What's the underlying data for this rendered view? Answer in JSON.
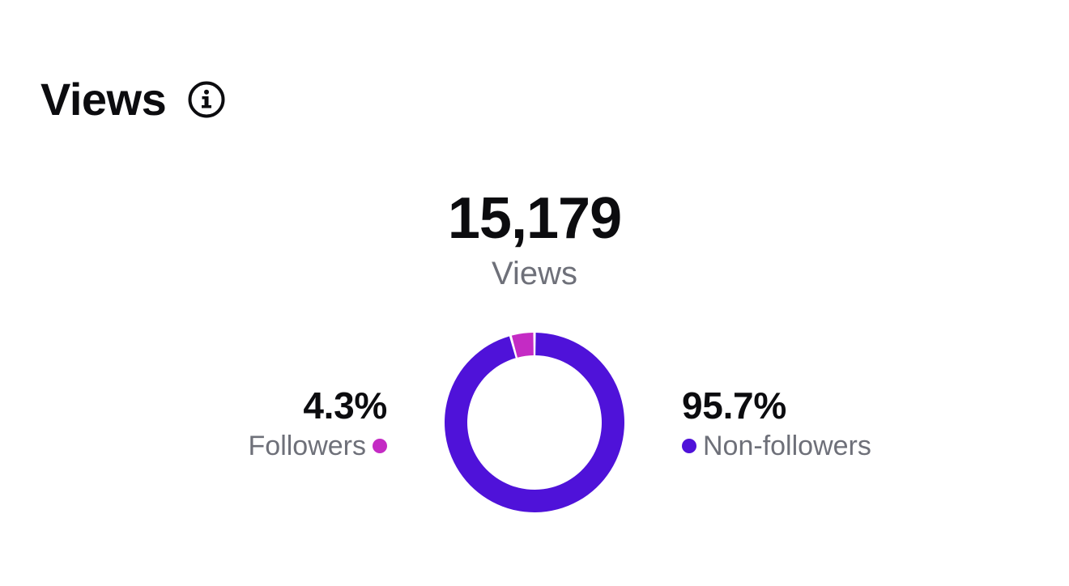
{
  "header": {
    "title": "Views",
    "info_icon": "info-circle-icon"
  },
  "summary": {
    "total": "15,179",
    "label": "Views"
  },
  "breakdown": {
    "followers": {
      "percent_label": "4.3%",
      "label": "Followers",
      "color": "#c42bc4"
    },
    "non_followers": {
      "percent_label": "95.7%",
      "label": "Non-followers",
      "color": "#4f12d9"
    }
  },
  "chart_data": {
    "type": "pie",
    "categories": [
      "Followers",
      "Non-followers"
    ],
    "values": [
      4.3,
      95.7
    ],
    "colors": [
      "#c42bc4",
      "#4f12d9"
    ],
    "title": "",
    "legend": "left/right of donut"
  }
}
